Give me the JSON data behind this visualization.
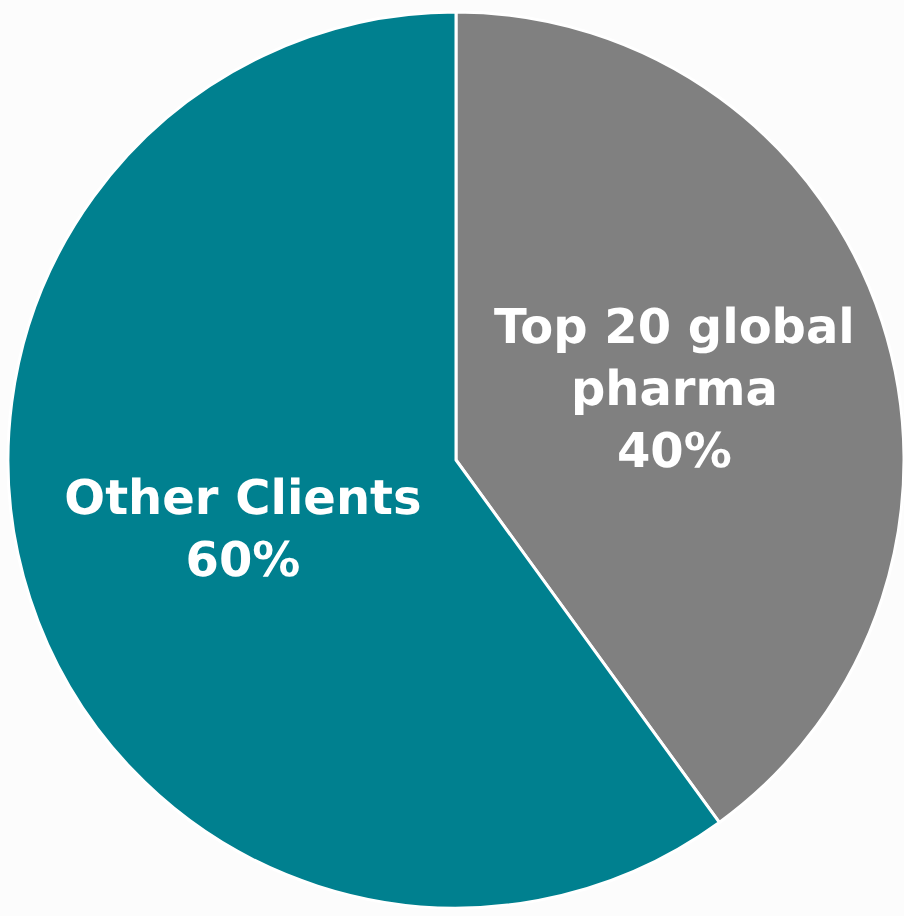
{
  "chart_data": {
    "type": "pie",
    "categories": [
      "Top 20 global pharma",
      "Other Clients"
    ],
    "values": [
      40,
      60
    ],
    "colors": [
      "#808080",
      "#00808f"
    ],
    "value_labels": [
      "40%",
      "60%"
    ],
    "legend": false
  }
}
